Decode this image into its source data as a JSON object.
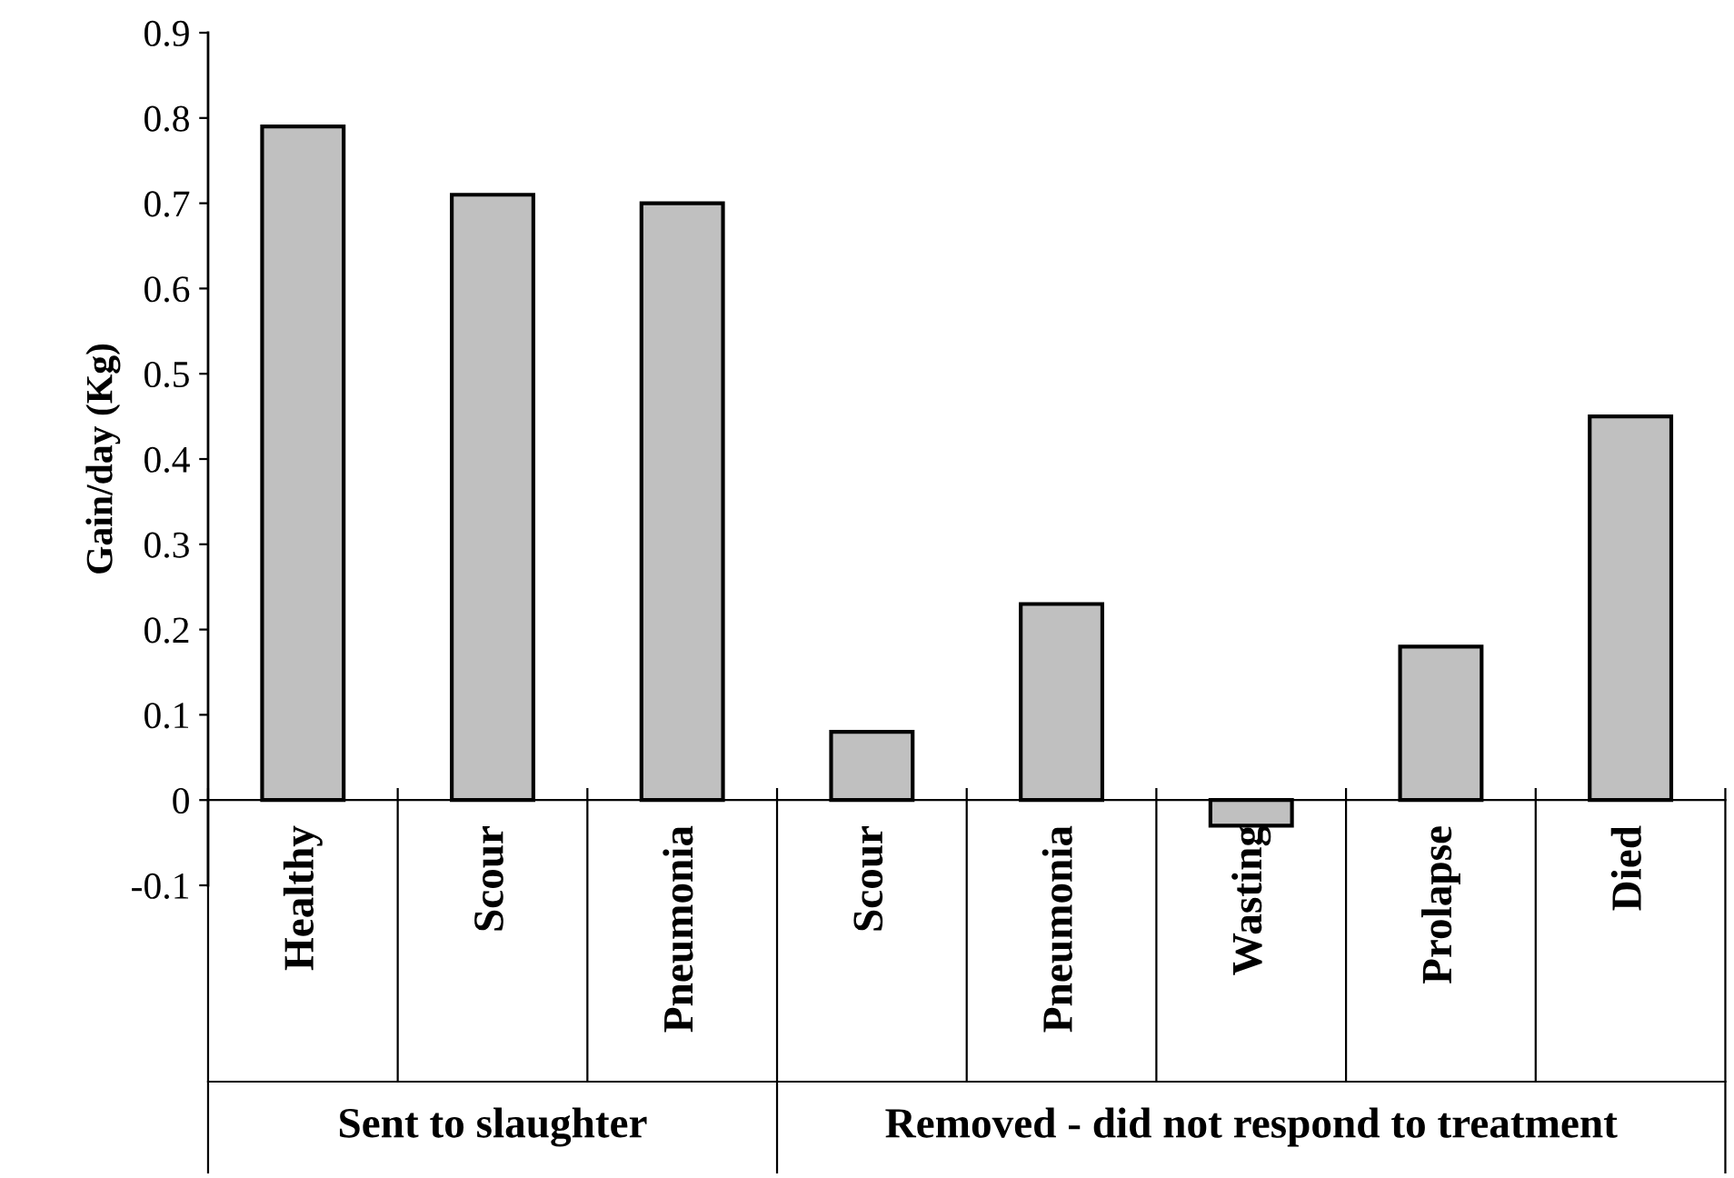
{
  "chart_data": {
    "type": "bar",
    "ylabel": "Gain/day (Kg)",
    "categories": [
      "Healthy",
      "Scour",
      "Pneumonia",
      "Scour",
      "Pneumonia",
      "Wasting",
      "Prolapse",
      "Died"
    ],
    "values": [
      0.79,
      0.71,
      0.7,
      0.08,
      0.23,
      -0.03,
      0.18,
      0.45
    ],
    "color": "#c0c0c0",
    "ylim": [
      -0.1,
      0.9
    ],
    "yticks": [
      -0.1,
      0,
      0.1,
      0.2,
      0.3,
      0.4,
      0.5,
      0.6,
      0.7,
      0.8,
      0.9
    ],
    "annotations": [
      "Sent to slaughter",
      "Removed - did not respond to treatment"
    ],
    "legend": false
  }
}
